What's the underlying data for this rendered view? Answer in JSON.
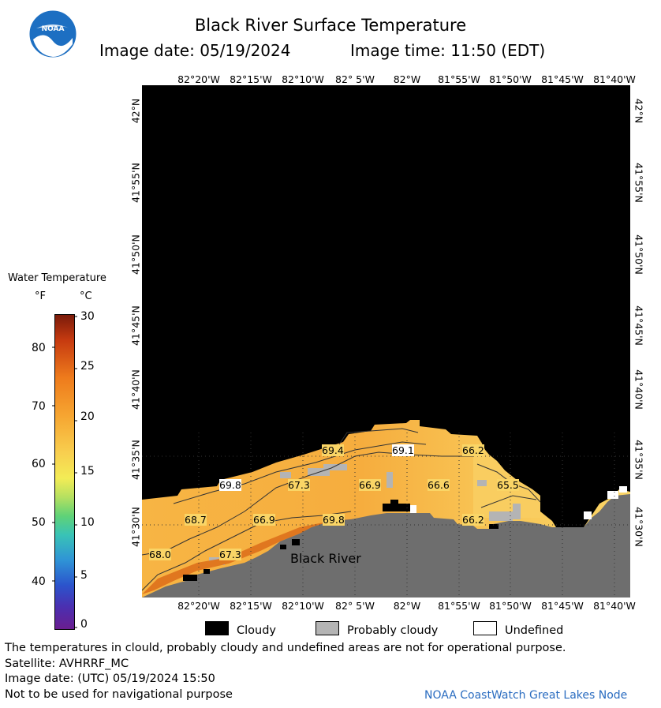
{
  "header": {
    "title": "Black River Surface Temperature",
    "image_date_label": "Image date: 05/19/2024",
    "image_time_label": "Image time: 11:50 (EDT)"
  },
  "logo": {
    "text": "NOAA"
  },
  "map": {
    "lon_labels": [
      "82°20'W",
      "82°15'W",
      "82°10'W",
      "82° 5'W",
      "82°W",
      "81°55'W",
      "81°50'W",
      "81°45'W",
      "81°40'W"
    ],
    "lat_labels": [
      "42°N",
      "41°55'N",
      "41°50'N",
      "41°45'N",
      "41°40'N",
      "41°35'N",
      "41°30'N"
    ],
    "place_label": "Black River",
    "temperature_labels": [
      "69.4",
      "69.1",
      "66.2",
      "69.8",
      "67.3",
      "66.9",
      "66.6",
      "65.5",
      "68.7",
      "66.9",
      "69.8",
      "66.2",
      "68.0",
      "67.3"
    ],
    "colors": {
      "land": "#6e6e6e",
      "no_data": "#000000",
      "probably_cloudy": "#b4b4b4",
      "water_warm": "#f7b544",
      "water_mid": "#f9c95a",
      "water_cool": "#fad566"
    }
  },
  "colorbar": {
    "title": "Water Temperature",
    "unit_f": "°F",
    "unit_c": "°C",
    "f_ticks": [
      "80",
      "70",
      "60",
      "50",
      "40"
    ],
    "c_ticks": [
      "30",
      "25",
      "20",
      "15",
      "10",
      "5",
      "0"
    ],
    "range_c": [
      0,
      30
    ]
  },
  "legend": {
    "cloudy": "Cloudy",
    "probably_cloudy": "Probably cloudy",
    "undefined": "Undefined"
  },
  "footer": {
    "disclaimer": "The temperatures in clould, probably cloudy and undefined areas are not for operational purpose.",
    "satellite": "Satellite: AVHRRF_MC",
    "utc_date": "Image date: (UTC) 05/19/2024  15:50",
    "nav_warning": "Not to be used for navigational purpose",
    "credit": "NOAA CoastWatch Great Lakes Node"
  }
}
